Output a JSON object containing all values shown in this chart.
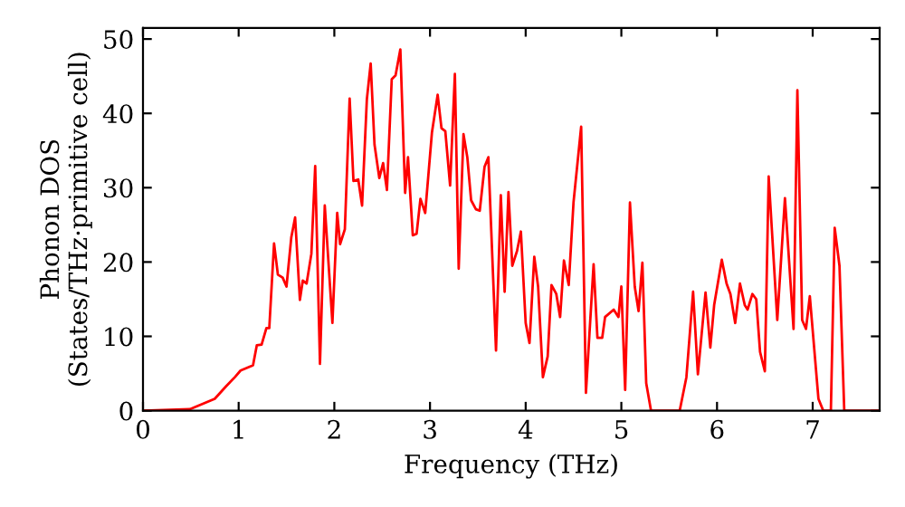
{
  "chart_data": {
    "type": "line",
    "xlabel": "Frequency (THz)",
    "ylabel": "Phonon DOS\n(States/THz·primitive cell)",
    "xlim": [
      0,
      7.7
    ],
    "ylim": [
      0,
      51.5
    ],
    "xticks": [
      0,
      1,
      2,
      3,
      4,
      5,
      6,
      7
    ],
    "yticks": [
      0,
      10,
      20,
      30,
      40,
      50
    ],
    "grid": false,
    "legend": false,
    "series": [
      {
        "color": "#ff0000",
        "x": [
          0,
          0.49,
          0.75,
          0.87,
          0.96,
          1.02,
          1.15,
          1.19,
          1.24,
          1.29,
          1.32,
          1.37,
          1.41,
          1.46,
          1.5,
          1.55,
          1.59,
          1.64,
          1.67,
          1.71,
          1.76,
          1.8,
          1.85,
          1.9,
          1.98,
          2.03,
          2.06,
          2.11,
          2.16,
          2.2,
          2.25,
          2.29,
          2.34,
          2.38,
          2.42,
          2.47,
          2.51,
          2.55,
          2.6,
          2.64,
          2.69,
          2.74,
          2.77,
          2.82,
          2.86,
          2.9,
          2.95,
          3.02,
          3.08,
          3.12,
          3.16,
          3.21,
          3.26,
          3.3,
          3.35,
          3.39,
          3.43,
          3.48,
          3.52,
          3.57,
          3.61,
          3.69,
          3.74,
          3.78,
          3.82,
          3.86,
          3.91,
          3.95,
          4.0,
          4.04,
          4.09,
          4.13,
          4.18,
          4.23,
          4.27,
          4.32,
          4.36,
          4.4,
          4.45,
          4.5,
          4.58,
          4.63,
          4.71,
          4.75,
          4.8,
          4.83,
          4.92,
          4.97,
          5.0,
          5.04,
          5.09,
          5.14,
          5.18,
          5.22,
          5.26,
          5.31,
          5.61,
          5.68,
          5.75,
          5.8,
          5.88,
          5.93,
          5.97,
          6.05,
          6.1,
          6.14,
          6.19,
          6.24,
          6.29,
          6.32,
          6.37,
          6.41,
          6.45,
          6.5,
          6.54,
          6.63,
          6.71,
          6.8,
          6.84,
          6.89,
          6.93,
          6.97,
          7.06,
          7.11,
          7.19,
          7.23,
          7.28,
          7.33,
          7.68
        ],
        "values": [
          0,
          0.2,
          1.6,
          3.3,
          4.5,
          5.4,
          6.1,
          8.8,
          8.9,
          11.1,
          11.1,
          22.5,
          18.3,
          17.9,
          16.7,
          23.3,
          26,
          14.9,
          17.5,
          17.1,
          21.1,
          32.9,
          6.3,
          27.6,
          11.8,
          26.6,
          22.4,
          24.4,
          42,
          30.9,
          31.1,
          27.6,
          41.9,
          46.7,
          35.8,
          31.3,
          33.3,
          29.7,
          44.6,
          45.1,
          48.6,
          29.3,
          34.1,
          23.6,
          23.8,
          28.5,
          26.6,
          37.4,
          42.5,
          38,
          37.6,
          30.3,
          45.3,
          19.1,
          37.2,
          34.1,
          28.3,
          27.1,
          26.9,
          32.8,
          34.1,
          8.1,
          29,
          16,
          29.4,
          19.5,
          21.5,
          24.1,
          11.8,
          9.1,
          20.7,
          16.7,
          4.5,
          7.3,
          16.9,
          15.7,
          12.6,
          20.2,
          16.9,
          28,
          38.2,
          2.4,
          19.7,
          9.8,
          9.8,
          12.6,
          13.6,
          12.6,
          16.7,
          2.8,
          28,
          16.7,
          13.4,
          19.9,
          3.7,
          0,
          0,
          4.5,
          16,
          4.9,
          15.9,
          8.5,
          14.2,
          20.3,
          17.1,
          15.7,
          11.8,
          17.1,
          14.2,
          13.6,
          15.7,
          15,
          7.9,
          5.3,
          31.5,
          12.2,
          28.6,
          11,
          43.1,
          12.2,
          11,
          15.4,
          1.6,
          0,
          0,
          24.6,
          19.5,
          0,
          0
        ]
      }
    ]
  }
}
